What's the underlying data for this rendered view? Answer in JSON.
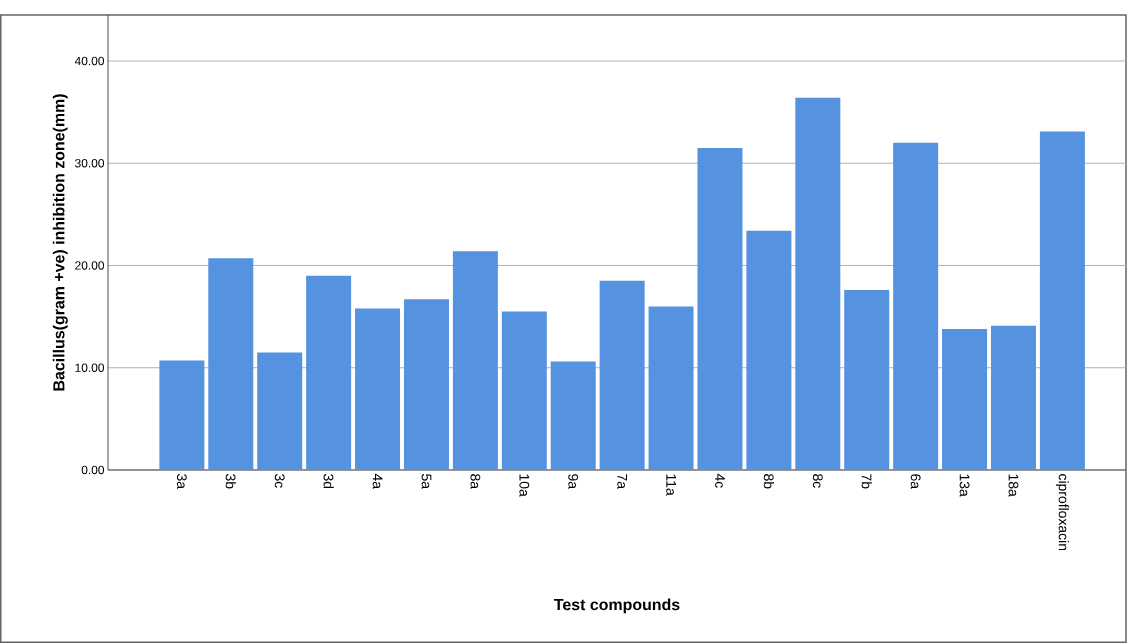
{
  "chart_data": {
    "type": "bar",
    "xlabel": "Test compounds",
    "ylabel": "Bacillus(gram +ve) inhibition zone(mm)",
    "categories": [
      "3a",
      "3b",
      "3c",
      "3d",
      "4a",
      "5a",
      "8a",
      "10a",
      "9a",
      "7a",
      "11a",
      "4c",
      "8b",
      "8c",
      "7b",
      "6a",
      "13a",
      "18a",
      "ciprofloxacin"
    ],
    "values": [
      10.7,
      20.7,
      11.5,
      19.0,
      15.8,
      16.7,
      21.4,
      15.5,
      10.6,
      18.5,
      16.0,
      31.5,
      23.4,
      36.4,
      17.6,
      32.0,
      13.8,
      14.1,
      33.1
    ],
    "color": "#5592e0",
    "ylim": [
      0,
      44.5
    ],
    "yticks": [
      {
        "value": 0,
        "label": "0.00"
      },
      {
        "value": 10,
        "label": "10.00"
      },
      {
        "value": 20,
        "label": "20.00"
      },
      {
        "value": 30,
        "label": "30.00"
      },
      {
        "value": 40,
        "label": "40.00"
      }
    ],
    "grid": "y"
  }
}
